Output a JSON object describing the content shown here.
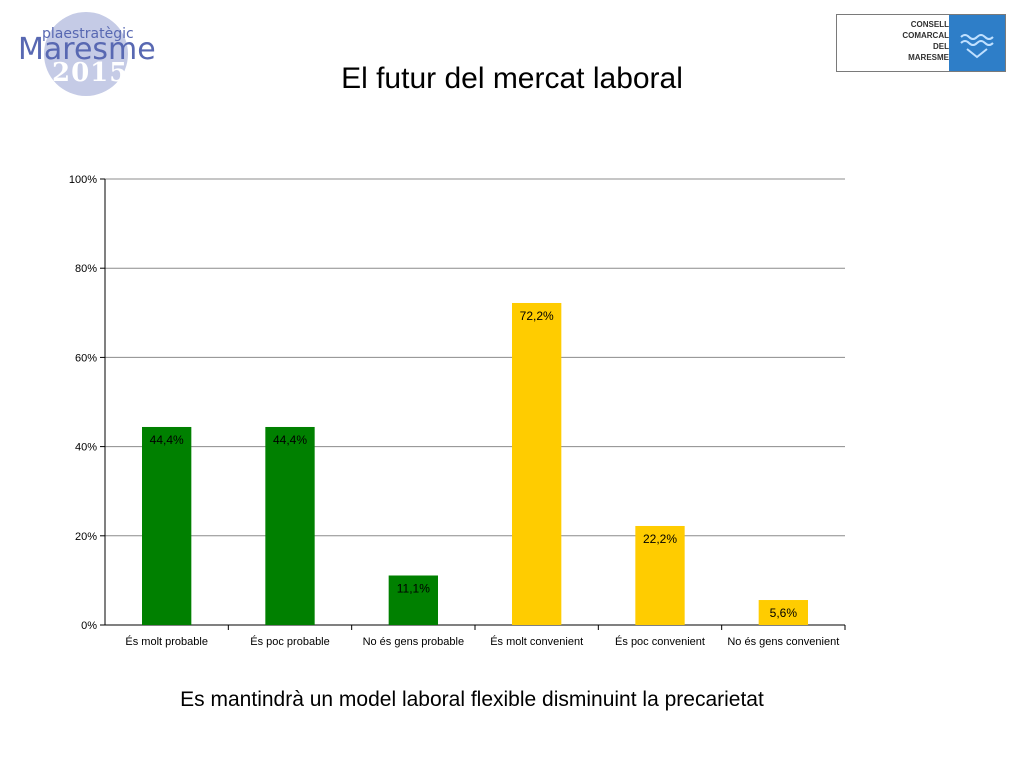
{
  "header": {
    "title": "El futur del mercat laboral"
  },
  "logo_left": {
    "subtitle": "plaestratègic",
    "brand": "Maresme",
    "year": "2015"
  },
  "logo_right": {
    "lines": [
      "CONSELL",
      "COMARCAL",
      "DEL",
      "MARESME"
    ]
  },
  "caption": "Es mantindrà un model laboral flexible disminuint la precarietat",
  "colors": {
    "green": "#008000",
    "yellow": "#ffcc00",
    "grid": "#8c8c8c",
    "logo_blue": "#5868b2"
  },
  "chart_data": {
    "type": "bar",
    "categories": [
      "És molt probable",
      "És poc probable",
      "No és gens probable",
      "És molt convenient",
      "És poc convenient",
      "No és gens convenient"
    ],
    "values": [
      44.4,
      44.4,
      11.1,
      72.2,
      22.2,
      5.6
    ],
    "value_labels": [
      "44,4%",
      "44,4%",
      "11,1%",
      "72,2%",
      "22,2%",
      "5,6%"
    ],
    "bar_colors": [
      "#008000",
      "#008000",
      "#008000",
      "#ffcc00",
      "#ffcc00",
      "#ffcc00"
    ],
    "ylim": [
      0,
      100
    ],
    "yticks": [
      0,
      20,
      40,
      60,
      80,
      100
    ],
    "ytick_labels": [
      "0%",
      "20%",
      "40%",
      "60%",
      "80%",
      "100%"
    ],
    "grid": true,
    "legend": "none"
  }
}
